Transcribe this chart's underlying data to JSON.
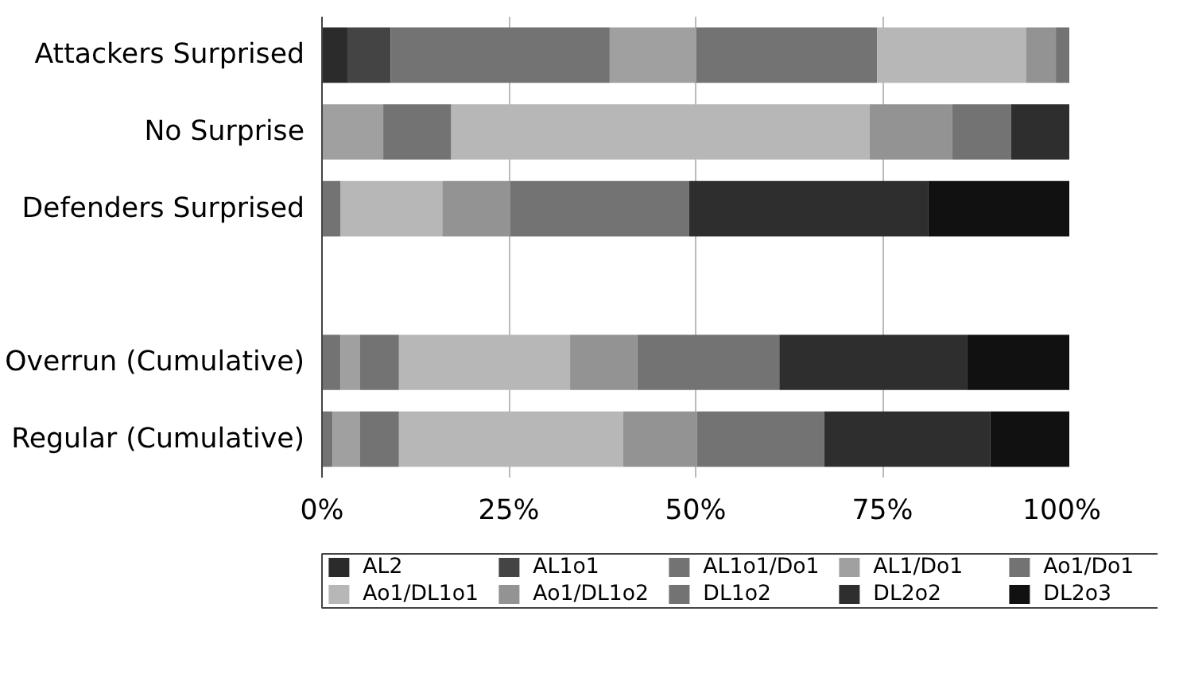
{
  "chart_data": {
    "type": "bar",
    "orientation": "horizontal",
    "stacked": true,
    "categories": [
      "Attackers Surprised",
      "No Surprise",
      "Defenders Surprised",
      null,
      "Overrun (Cumulative)",
      "Regular (Cumulative)"
    ],
    "xlim": [
      0,
      100
    ],
    "xticks": [
      {
        "value": 0,
        "label": "0%"
      },
      {
        "value": 25,
        "label": "25%"
      },
      {
        "value": 50,
        "label": "50%"
      },
      {
        "value": 75,
        "label": "75%"
      },
      {
        "value": 100,
        "label": "100%"
      }
    ],
    "grid": "x",
    "legend": "bottom",
    "series": [
      {
        "name": "AL2",
        "color": "#2b2b2b",
        "values": [
          3.4,
          null,
          null,
          null,
          null,
          null
        ]
      },
      {
        "name": "AL1o1",
        "color": "#444444",
        "values": [
          5.8,
          null,
          null,
          null,
          null,
          null
        ]
      },
      {
        "name": "AL1o1/Do1",
        "color": "#737373",
        "values": [
          29.3,
          null,
          null,
          null,
          2.5,
          1.4
        ]
      },
      {
        "name": "AL1/Do1",
        "color": "#a0a0a0",
        "values": [
          11.6,
          8.2,
          null,
          null,
          2.6,
          3.7
        ]
      },
      {
        "name": "Ao1/Do1",
        "color": "#737373",
        "values": [
          24.2,
          9.1,
          2.5,
          null,
          5.2,
          5.2
        ]
      },
      {
        "name": "Ao1/DL1o1",
        "color": "#b7b7b7",
        "values": [
          19.9,
          56.0,
          13.6,
          null,
          22.9,
          30.0
        ]
      },
      {
        "name": "Ao1/DL1o2",
        "color": "#939393",
        "values": [
          4.0,
          11.0,
          9.1,
          null,
          9.0,
          9.9
        ]
      },
      {
        "name": "DL1o2",
        "color": "#737373",
        "values": [
          1.8,
          7.9,
          23.9,
          null,
          19.0,
          17.0
        ]
      },
      {
        "name": "DL2o2",
        "color": "#2e2e2e",
        "values": [
          null,
          7.8,
          32.0,
          null,
          25.1,
          22.2
        ]
      },
      {
        "name": "DL2o3",
        "color": "#111111",
        "values": [
          null,
          null,
          18.9,
          null,
          13.8,
          10.9
        ]
      }
    ]
  }
}
